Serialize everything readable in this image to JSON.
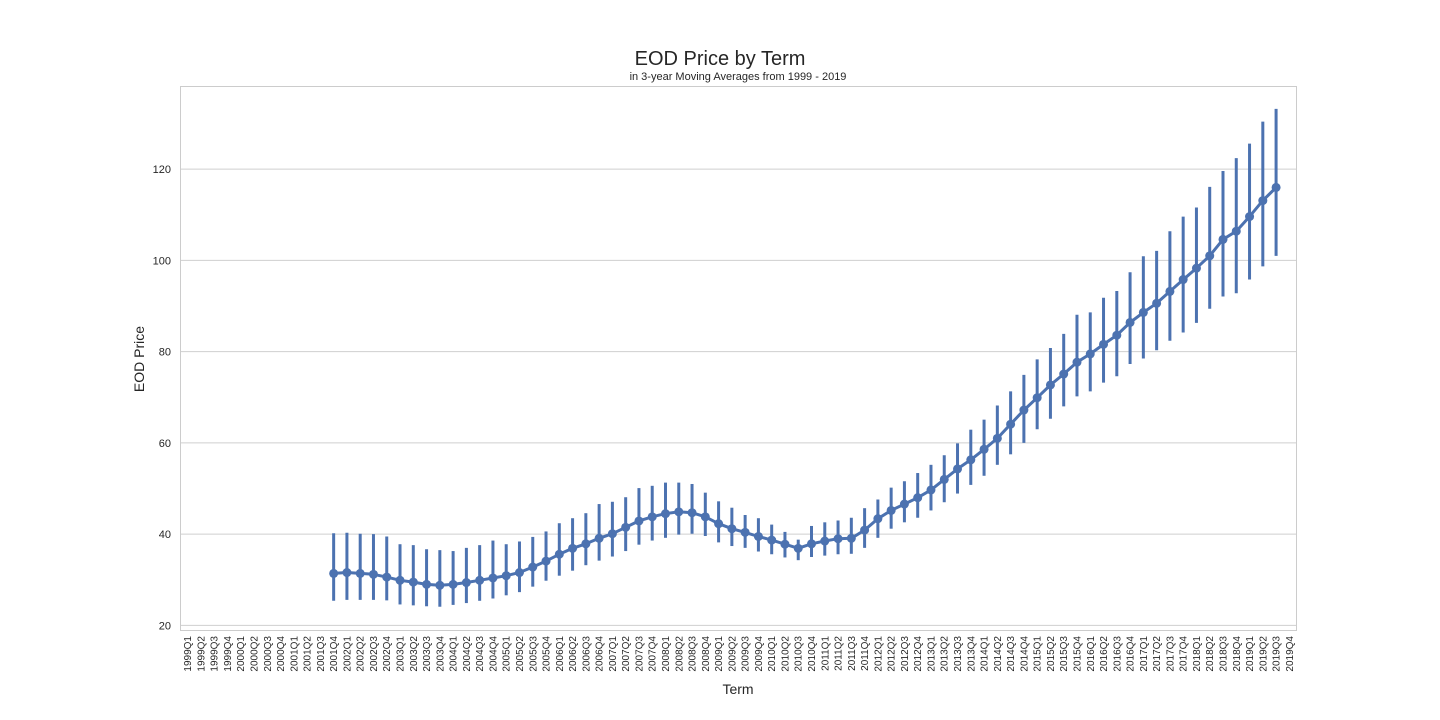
{
  "chart_data": {
    "type": "line",
    "title": "EOD Price by Term",
    "subtitle": "in 3-year Moving Averages from 1999 - 2019",
    "xlabel": "Term",
    "ylabel": "EOD Price",
    "ylim": [
      19,
      138
    ],
    "yticks": [
      20,
      40,
      60,
      80,
      100,
      120
    ],
    "grid": "y-major",
    "color": "#4c72b0",
    "categories": [
      "1999Q1",
      "1999Q2",
      "1999Q3",
      "1999Q4",
      "2000Q1",
      "2000Q2",
      "2000Q3",
      "2000Q4",
      "2001Q1",
      "2001Q2",
      "2001Q3",
      "2001Q4",
      "2002Q1",
      "2002Q2",
      "2002Q3",
      "2002Q4",
      "2003Q1",
      "2003Q2",
      "2003Q3",
      "2003Q4",
      "2004Q1",
      "2004Q2",
      "2004Q3",
      "2004Q4",
      "2005Q1",
      "2005Q2",
      "2005Q3",
      "2005Q4",
      "2006Q1",
      "2006Q2",
      "2006Q3",
      "2006Q4",
      "2007Q1",
      "2007Q2",
      "2007Q3",
      "2007Q4",
      "2008Q1",
      "2008Q2",
      "2008Q3",
      "2008Q4",
      "2009Q1",
      "2009Q2",
      "2009Q3",
      "2009Q4",
      "2010Q1",
      "2010Q2",
      "2010Q3",
      "2010Q4",
      "2011Q1",
      "2011Q2",
      "2011Q3",
      "2011Q4",
      "2012Q1",
      "2012Q2",
      "2012Q3",
      "2012Q4",
      "2013Q1",
      "2013Q2",
      "2013Q3",
      "2013Q4",
      "2014Q1",
      "2014Q2",
      "2014Q3",
      "2014Q4",
      "2015Q1",
      "2015Q2",
      "2015Q3",
      "2015Q4",
      "2016Q1",
      "2016Q2",
      "2016Q3",
      "2016Q4",
      "2017Q1",
      "2017Q2",
      "2017Q3",
      "2017Q4",
      "2018Q1",
      "2018Q2",
      "2018Q3",
      "2018Q4",
      "2019Q1",
      "2019Q2",
      "2019Q3",
      "2019Q4"
    ],
    "series": [
      {
        "values": [
          null,
          null,
          null,
          null,
          null,
          null,
          null,
          null,
          null,
          null,
          null,
          31.4,
          31.6,
          31.4,
          31.2,
          30.6,
          29.9,
          29.5,
          29.0,
          28.8,
          29.0,
          29.4,
          29.9,
          30.4,
          30.9,
          31.6,
          32.8,
          34.1,
          35.6,
          36.9,
          37.9,
          39.1,
          40.1,
          41.5,
          42.9,
          43.8,
          44.5,
          44.9,
          44.7,
          43.8,
          42.3,
          41.2,
          40.4,
          39.5,
          38.7,
          37.8,
          36.9,
          37.9,
          38.5,
          39.0,
          39.1,
          40.9,
          43.4,
          45.2,
          46.6,
          48.0,
          49.7,
          52.0,
          54.3,
          56.3,
          58.6,
          61.0,
          64.1,
          67.2,
          69.9,
          72.7,
          75.1,
          77.7,
          79.5,
          81.6,
          83.6,
          86.4,
          88.6,
          90.6,
          93.2,
          95.8,
          98.3,
          101.0,
          104.6,
          106.4,
          109.6,
          113.1,
          116.0,
          null
        ],
        "lower": [
          null,
          null,
          null,
          null,
          null,
          null,
          null,
          null,
          null,
          null,
          null,
          25.4,
          25.6,
          25.6,
          25.6,
          25.5,
          24.6,
          24.4,
          24.2,
          24.1,
          24.5,
          24.9,
          25.4,
          25.9,
          26.6,
          27.3,
          28.5,
          29.8,
          30.9,
          32.0,
          33.2,
          34.2,
          35.1,
          36.3,
          37.7,
          38.6,
          39.2,
          39.9,
          40.1,
          39.6,
          38.2,
          37.4,
          37.0,
          36.2,
          35.6,
          34.9,
          34.3,
          35.0,
          35.3,
          35.6,
          35.7,
          37.0,
          39.2,
          41.2,
          42.6,
          43.6,
          45.2,
          47.0,
          48.9,
          50.8,
          52.8,
          55.2,
          57.5,
          60.0,
          63.0,
          65.3,
          68.0,
          70.2,
          71.3,
          73.2,
          74.6,
          77.3,
          78.5,
          80.3,
          82.4,
          84.2,
          86.3,
          89.4,
          92.1,
          92.8,
          95.8,
          98.7,
          101.0,
          null
        ],
        "upper": [
          null,
          null,
          null,
          null,
          null,
          null,
          null,
          null,
          null,
          null,
          null,
          40.2,
          40.3,
          40.1,
          40.0,
          39.5,
          37.8,
          37.6,
          36.7,
          36.5,
          36.3,
          37.0,
          37.6,
          38.6,
          37.8,
          38.4,
          39.4,
          40.6,
          42.4,
          43.5,
          44.6,
          46.6,
          47.1,
          48.1,
          50.1,
          50.6,
          51.3,
          51.3,
          51.0,
          49.1,
          47.2,
          45.8,
          44.2,
          43.5,
          42.1,
          40.5,
          38.8,
          41.8,
          42.6,
          43.0,
          43.6,
          45.7,
          47.6,
          50.2,
          51.6,
          53.4,
          55.2,
          57.3,
          59.9,
          62.9,
          65.1,
          68.2,
          71.3,
          74.9,
          78.3,
          80.8,
          83.9,
          88.1,
          88.6,
          91.8,
          93.3,
          97.4,
          100.9,
          102.1,
          106.4,
          109.6,
          111.6,
          116.1,
          119.6,
          122.4,
          125.6,
          130.4,
          133.2,
          null
        ]
      }
    ]
  }
}
